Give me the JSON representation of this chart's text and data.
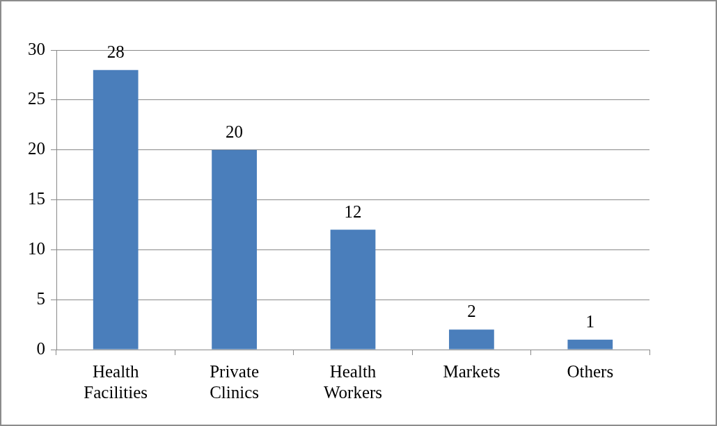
{
  "chart_data": {
    "type": "bar",
    "categories": [
      "Health Facilities",
      "Private Clinics",
      "Health Workers",
      "Markets",
      "Others"
    ],
    "values": [
      28,
      20,
      12,
      2,
      1
    ],
    "color": "#4a7ebb",
    "ylim": [
      0,
      30
    ],
    "yticks": [
      0,
      5,
      10,
      15,
      20,
      25,
      30
    ],
    "grid": "y",
    "data_labels": true
  }
}
